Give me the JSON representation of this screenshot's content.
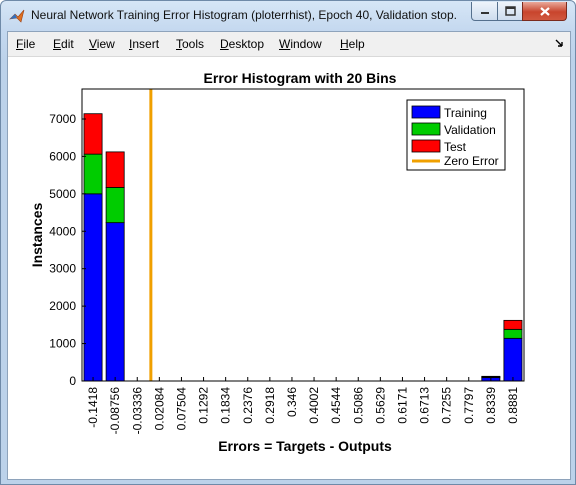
{
  "window": {
    "title": "Neural Network Training Error Histogram (ploterrhist), Epoch 40, Validation stop."
  },
  "menubar": {
    "items": [
      "File",
      "Edit",
      "View",
      "Insert",
      "Tools",
      "Desktop",
      "Window",
      "Help"
    ]
  },
  "colors": {
    "training": "#0000ff",
    "validation": "#00cc00",
    "test": "#ff0000",
    "zero_error": "#f0a000"
  },
  "chart_data": {
    "type": "bar",
    "stacked": true,
    "title": "Error Histogram with 20 Bins",
    "xlabel": "Errors = Targets - Outputs",
    "ylabel": "Instances",
    "categories": [
      "-0.1418",
      "-0.08756",
      "-0.03336",
      "0.02084",
      "0.07504",
      "0.1292",
      "0.1834",
      "0.2376",
      "0.2918",
      "0.346",
      "0.4002",
      "0.4544",
      "0.5086",
      "0.5629",
      "0.6171",
      "0.6713",
      "0.7255",
      "0.7797",
      "0.8339",
      "0.8881"
    ],
    "series": [
      {
        "name": "Training",
        "values": [
          5000,
          4230,
          0,
          0,
          0,
          0,
          0,
          0,
          0,
          0,
          0,
          0,
          0,
          0,
          0,
          0,
          0,
          0,
          90,
          1140
        ]
      },
      {
        "name": "Validation",
        "values": [
          1060,
          940,
          0,
          0,
          0,
          0,
          0,
          0,
          0,
          0,
          0,
          0,
          0,
          0,
          0,
          0,
          0,
          0,
          20,
          240
        ]
      },
      {
        "name": "Test",
        "values": [
          1080,
          950,
          0,
          0,
          0,
          0,
          0,
          0,
          0,
          0,
          0,
          0,
          0,
          0,
          0,
          0,
          0,
          0,
          15,
          240
        ]
      }
    ],
    "zero_error": {
      "name": "Zero Error",
      "x": 0
    },
    "ylim": [
      0,
      7800
    ],
    "yticks": [
      0,
      1000,
      2000,
      3000,
      4000,
      5000,
      6000,
      7000
    ],
    "grid": false,
    "legend": "top-right"
  }
}
